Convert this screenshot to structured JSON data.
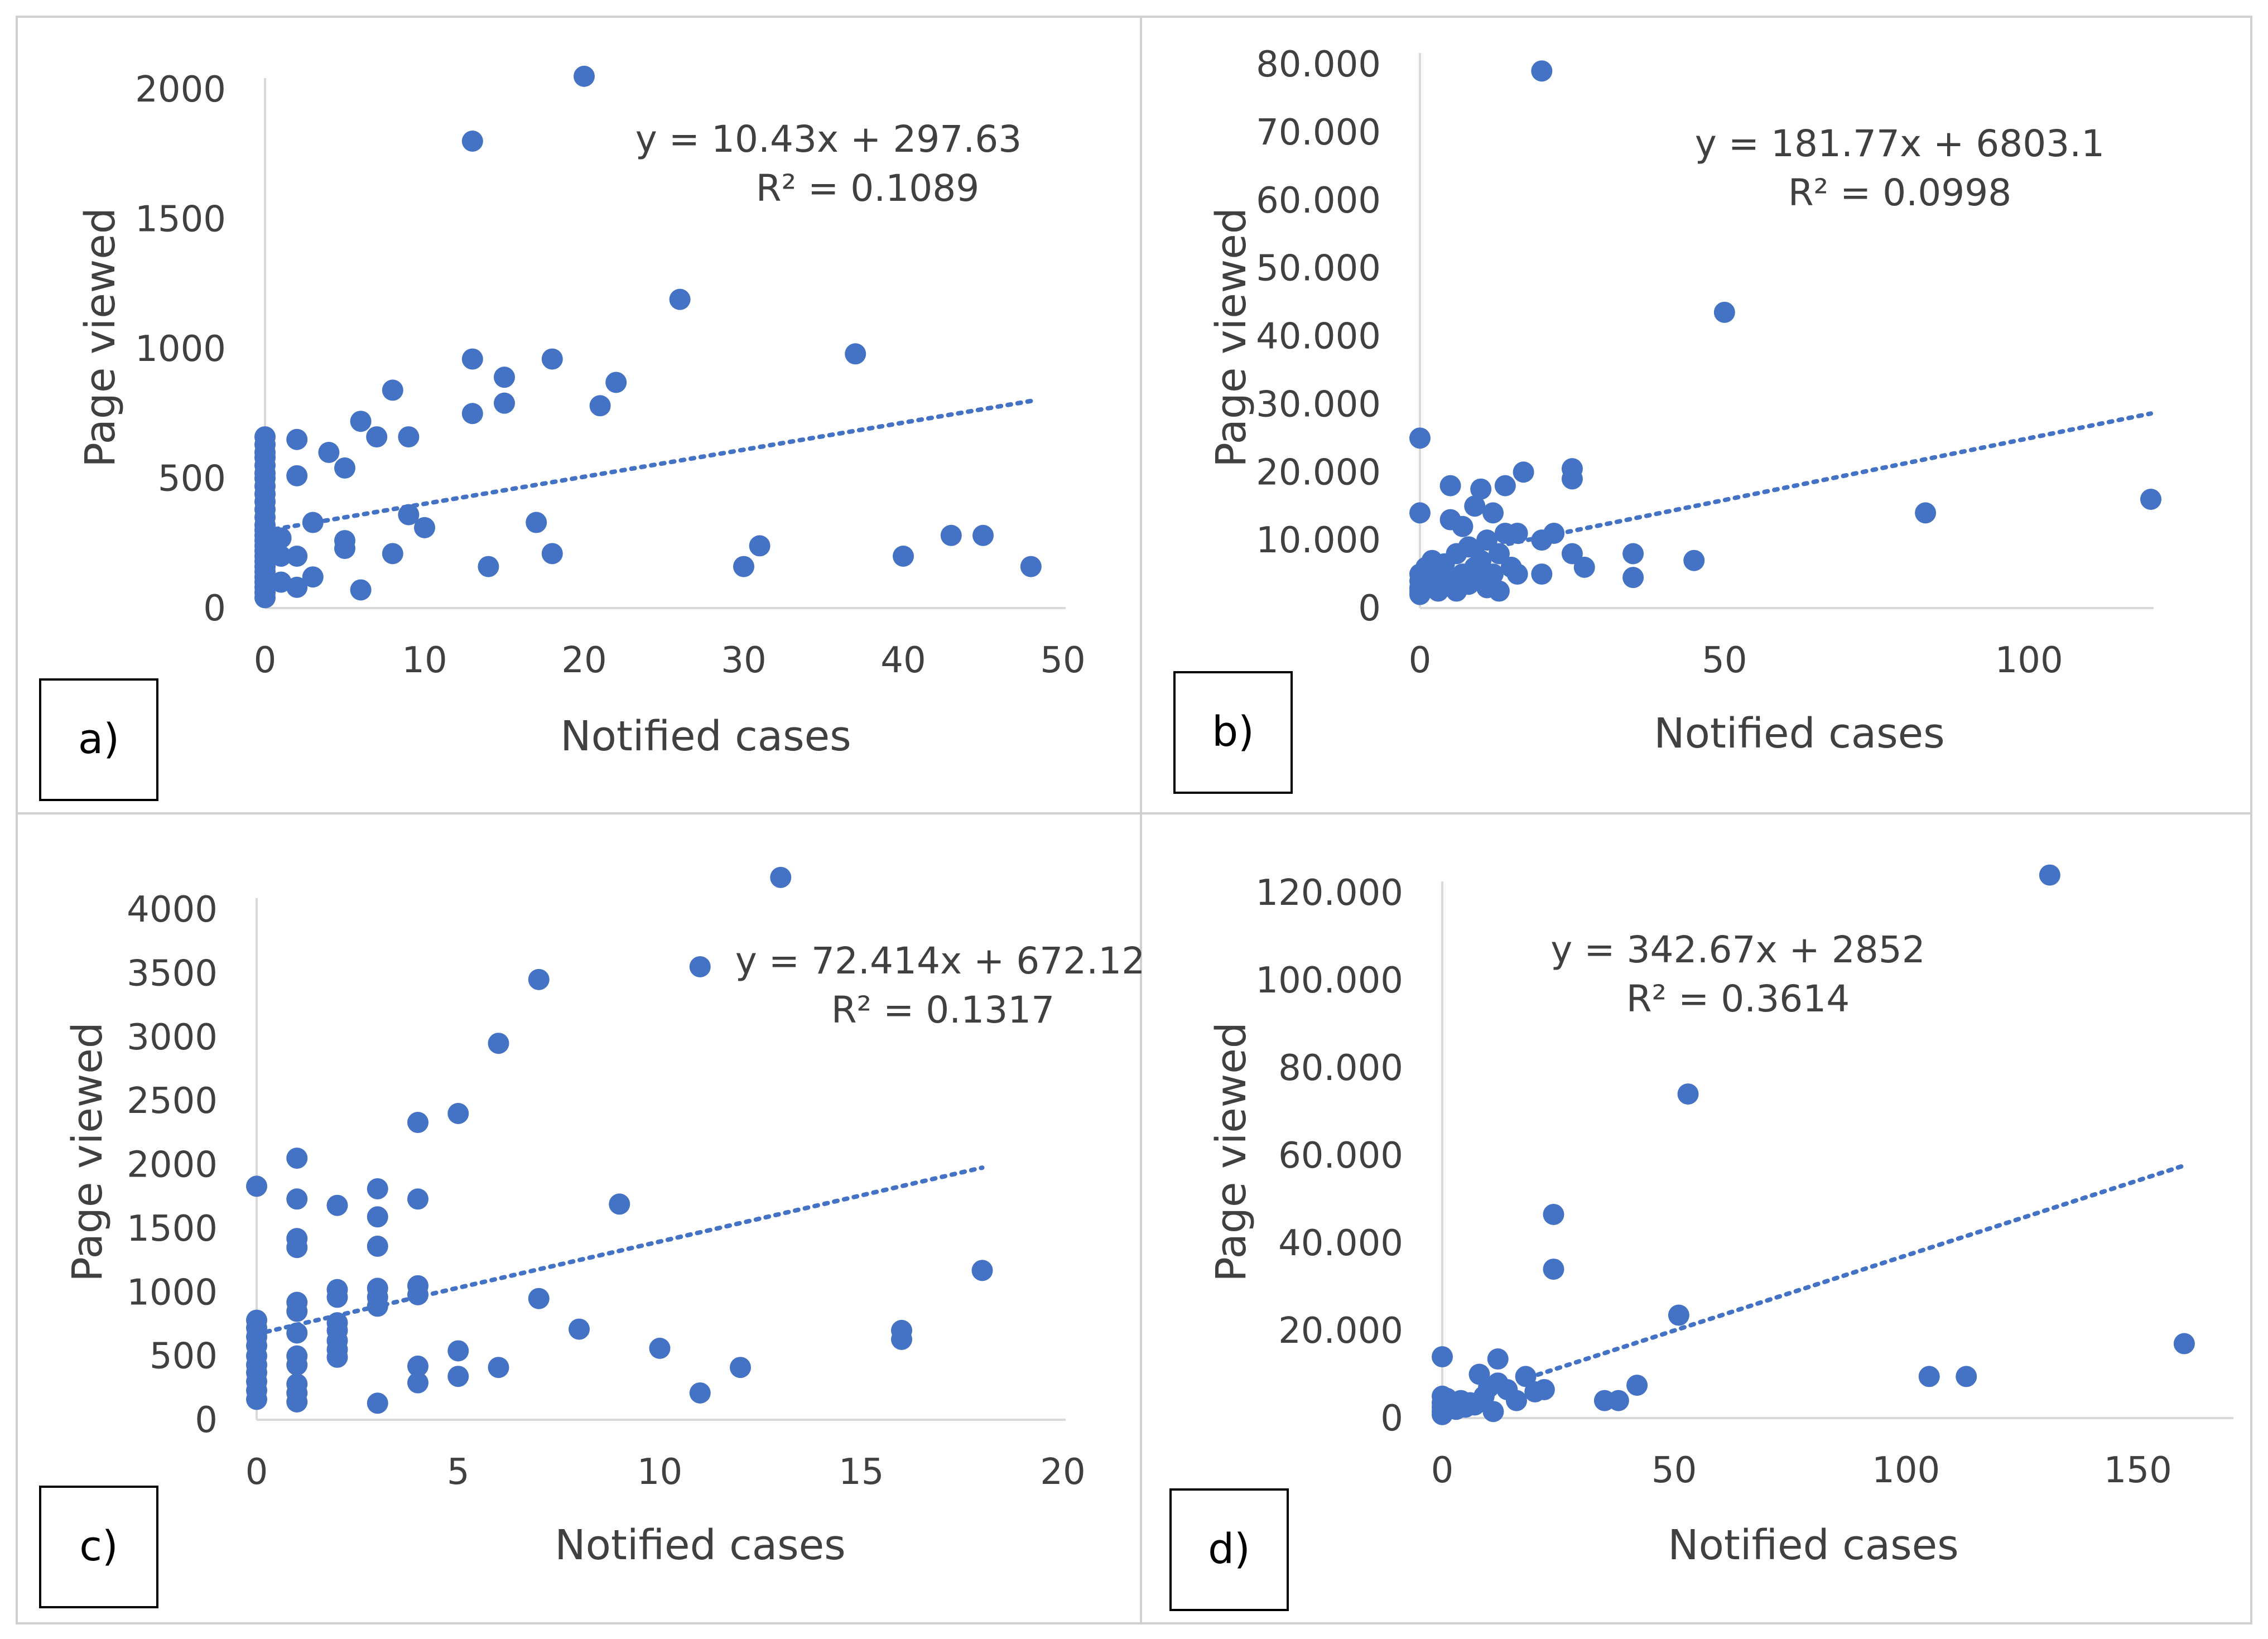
{
  "colors": {
    "marker": "#4472C4",
    "axis_text": "#404040",
    "axis_line": "#d9d9d9",
    "panel_border": "#d0d0d0"
  },
  "chart_data": [
    {
      "type": "scatter",
      "panel_label": "a)",
      "xlabel": "Notified cases",
      "ylabel": "Page viewed",
      "xlim": [
        0,
        50
      ],
      "ylim": [
        0,
        2000
      ],
      "x_ticks": [
        0,
        10,
        20,
        30,
        40,
        50
      ],
      "y_ticks": [
        0,
        500,
        1000,
        1500,
        2000
      ],
      "x_tick_labels": [
        "0",
        "10",
        "20",
        "30",
        "40",
        "50"
      ],
      "y_tick_labels": [
        "0",
        "500",
        "1000",
        "1500",
        "2000"
      ],
      "trendline": {
        "type": "linear",
        "slope": 10.43,
        "intercept": 297.63,
        "x_range": [
          0,
          48
        ],
        "style": "dotted"
      },
      "equation": "y = 10.43x + 297.63",
      "r2_label": "R² = 0.1089",
      "points": [
        [
          0,
          660
        ],
        [
          0,
          630
        ],
        [
          0,
          600
        ],
        [
          0,
          580
        ],
        [
          0,
          550
        ],
        [
          0,
          520
        ],
        [
          0,
          500
        ],
        [
          0,
          470
        ],
        [
          0,
          440
        ],
        [
          0,
          410
        ],
        [
          0,
          380
        ],
        [
          0,
          350
        ],
        [
          0,
          320
        ],
        [
          0,
          300
        ],
        [
          0,
          280
        ],
        [
          0,
          260
        ],
        [
          0,
          240
        ],
        [
          0,
          220
        ],
        [
          0,
          200
        ],
        [
          0,
          180
        ],
        [
          0,
          160
        ],
        [
          0,
          140
        ],
        [
          0,
          120
        ],
        [
          0,
          100
        ],
        [
          0,
          80
        ],
        [
          0,
          60
        ],
        [
          0,
          40
        ],
        [
          1,
          270
        ],
        [
          1,
          200
        ],
        [
          1,
          100
        ],
        [
          2,
          650
        ],
        [
          2,
          510
        ],
        [
          2,
          200
        ],
        [
          2,
          80
        ],
        [
          3,
          330
        ],
        [
          3,
          120
        ],
        [
          4,
          600
        ],
        [
          5,
          540
        ],
        [
          5,
          260
        ],
        [
          5,
          230
        ],
        [
          6,
          720
        ],
        [
          6,
          70
        ],
        [
          7,
          660
        ],
        [
          8,
          840
        ],
        [
          8,
          210
        ],
        [
          9,
          660
        ],
        [
          9,
          360
        ],
        [
          10,
          310
        ],
        [
          13,
          1800
        ],
        [
          13,
          960
        ],
        [
          13,
          750
        ],
        [
          14,
          160
        ],
        [
          15,
          890
        ],
        [
          15,
          790
        ],
        [
          17,
          330
        ],
        [
          18,
          960
        ],
        [
          18,
          210
        ],
        [
          20,
          2050
        ],
        [
          21,
          780
        ],
        [
          22,
          870
        ],
        [
          26,
          1190
        ],
        [
          30,
          160
        ],
        [
          31,
          240
        ],
        [
          37,
          980
        ],
        [
          40,
          200
        ],
        [
          43,
          280
        ],
        [
          45,
          280
        ],
        [
          48,
          160
        ]
      ]
    },
    {
      "type": "scatter",
      "panel_label": "b)",
      "xlabel": "Notified cases",
      "ylabel": "Page viewed",
      "xlim": [
        0,
        120
      ],
      "ylim": [
        0,
        80000
      ],
      "x_ticks": [
        0,
        50,
        100
      ],
      "y_ticks": [
        0,
        10000,
        20000,
        30000,
        40000,
        50000,
        60000,
        70000,
        80000
      ],
      "x_tick_labels": [
        "0",
        "50",
        "100"
      ],
      "y_tick_labels": [
        "0",
        "10.000",
        "20.000",
        "30.000",
        "40.000",
        "50.000",
        "60.000",
        "70.000",
        "80.000"
      ],
      "trendline": {
        "type": "linear",
        "slope": 181.77,
        "intercept": 6803.1,
        "x_range": [
          0,
          120
        ],
        "style": "dotted"
      },
      "equation": "y = 181.77x + 6803.1",
      "r2_label": "R² = 0.0998",
      "points": [
        [
          0,
          25000
        ],
        [
          0,
          14000
        ],
        [
          0,
          5000
        ],
        [
          0,
          4000
        ],
        [
          0,
          3000
        ],
        [
          0,
          2500
        ],
        [
          0,
          2000
        ],
        [
          1,
          6000
        ],
        [
          1,
          4500
        ],
        [
          2,
          7000
        ],
        [
          2,
          3000
        ],
        [
          3,
          5000
        ],
        [
          3,
          2500
        ],
        [
          4,
          6500
        ],
        [
          4,
          3500
        ],
        [
          5,
          18000
        ],
        [
          5,
          13000
        ],
        [
          5,
          4000
        ],
        [
          6,
          8000
        ],
        [
          6,
          2500
        ],
        [
          7,
          12000
        ],
        [
          7,
          5000
        ],
        [
          8,
          9000
        ],
        [
          8,
          3500
        ],
        [
          9,
          15000
        ],
        [
          9,
          6000
        ],
        [
          10,
          17500
        ],
        [
          10,
          7000
        ],
        [
          10,
          4000
        ],
        [
          11,
          10000
        ],
        [
          11,
          3000
        ],
        [
          12,
          14000
        ],
        [
          12,
          5000
        ],
        [
          13,
          8000
        ],
        [
          13,
          2500
        ],
        [
          14,
          18000
        ],
        [
          14,
          11000
        ],
        [
          15,
          6000
        ],
        [
          16,
          11000
        ],
        [
          16,
          5000
        ],
        [
          17,
          20000
        ],
        [
          20,
          79000
        ],
        [
          20,
          10000
        ],
        [
          20,
          5000
        ],
        [
          22,
          11000
        ],
        [
          25,
          20500
        ],
        [
          25,
          19000
        ],
        [
          25,
          8000
        ],
        [
          27,
          6000
        ],
        [
          35,
          4500
        ],
        [
          35,
          8000
        ],
        [
          45,
          7000
        ],
        [
          50,
          43500
        ],
        [
          83,
          14000
        ],
        [
          120,
          16000
        ]
      ]
    },
    {
      "type": "scatter",
      "panel_label": "c)",
      "xlabel": "Notified cases",
      "ylabel": "Page viewed",
      "xlim": [
        0,
        20
      ],
      "ylim": [
        0,
        4000
      ],
      "x_ticks": [
        0,
        5,
        10,
        15,
        20
      ],
      "y_ticks": [
        0,
        500,
        1000,
        1500,
        2000,
        2500,
        3000,
        3500,
        4000
      ],
      "x_tick_labels": [
        "0",
        "5",
        "10",
        "15",
        "20"
      ],
      "y_tick_labels": [
        "0",
        "500",
        "1000",
        "1500",
        "2000",
        "2500",
        "3000",
        "3500",
        "4000"
      ],
      "trendline": {
        "type": "linear",
        "slope": 72.414,
        "intercept": 672.12,
        "x_range": [
          0,
          18
        ],
        "style": "dotted"
      },
      "equation": "y = 72.414x + 672.12",
      "r2_label": "R² = 0.1317",
      "points": [
        [
          0,
          1830
        ],
        [
          0,
          780
        ],
        [
          0,
          720
        ],
        [
          0,
          650
        ],
        [
          0,
          580
        ],
        [
          0,
          500
        ],
        [
          0,
          430
        ],
        [
          0,
          370
        ],
        [
          0,
          300
        ],
        [
          0,
          230
        ],
        [
          0,
          160
        ],
        [
          1,
          2050
        ],
        [
          1,
          1730
        ],
        [
          1,
          1420
        ],
        [
          1,
          1350
        ],
        [
          1,
          920
        ],
        [
          1,
          850
        ],
        [
          1,
          680
        ],
        [
          1,
          500
        ],
        [
          1,
          430
        ],
        [
          1,
          280
        ],
        [
          1,
          210
        ],
        [
          1,
          140
        ],
        [
          2,
          1680
        ],
        [
          2,
          1020
        ],
        [
          2,
          960
        ],
        [
          2,
          760
        ],
        [
          2,
          700
        ],
        [
          2,
          620
        ],
        [
          2,
          550
        ],
        [
          2,
          490
        ],
        [
          3,
          1810
        ],
        [
          3,
          1590
        ],
        [
          3,
          1360
        ],
        [
          3,
          1030
        ],
        [
          3,
          960
        ],
        [
          3,
          890
        ],
        [
          3,
          130
        ],
        [
          4,
          2330
        ],
        [
          4,
          1730
        ],
        [
          4,
          1050
        ],
        [
          4,
          980
        ],
        [
          4,
          420
        ],
        [
          4,
          290
        ],
        [
          5,
          2400
        ],
        [
          5,
          540
        ],
        [
          5,
          340
        ],
        [
          6,
          2950
        ],
        [
          6,
          410
        ],
        [
          7,
          3450
        ],
        [
          7,
          950
        ],
        [
          8,
          710
        ],
        [
          9,
          1690
        ],
        [
          10,
          560
        ],
        [
          11,
          3550
        ],
        [
          11,
          210
        ],
        [
          12,
          410
        ],
        [
          13,
          4250
        ],
        [
          16,
          700
        ],
        [
          16,
          630
        ],
        [
          18,
          1170
        ]
      ]
    },
    {
      "type": "scatter",
      "panel_label": "d)",
      "xlabel": "Notified cases",
      "ylabel": "Page viewed",
      "xlim": [
        0,
        170
      ],
      "ylim": [
        0,
        120000
      ],
      "x_ticks": [
        0,
        50,
        100,
        150
      ],
      "y_ticks": [
        0,
        20000,
        40000,
        60000,
        80000,
        100000,
        120000
      ],
      "x_tick_labels": [
        "0",
        "50",
        "100",
        "150"
      ],
      "y_tick_labels": [
        "0",
        "20.000",
        "40.000",
        "60.000",
        "80.000",
        "100.000",
        "120.000"
      ],
      "trendline": {
        "type": "linear",
        "slope": 342.67,
        "intercept": 2852,
        "x_range": [
          0,
          160
        ],
        "style": "dotted"
      },
      "equation": "y = 342.67x + 2852",
      "r2_label": "R² = 0.3614",
      "points": [
        [
          0,
          14000
        ],
        [
          0,
          5000
        ],
        [
          0,
          3500
        ],
        [
          0,
          2500
        ],
        [
          0,
          1500
        ],
        [
          0,
          800
        ],
        [
          1,
          4500
        ],
        [
          2,
          3000
        ],
        [
          3,
          2000
        ],
        [
          4,
          4000
        ],
        [
          5,
          2500
        ],
        [
          6,
          3500
        ],
        [
          7,
          3000
        ],
        [
          8,
          10000
        ],
        [
          9,
          5000
        ],
        [
          10,
          7000
        ],
        [
          11,
          1500
        ],
        [
          12,
          13500
        ],
        [
          12,
          8000
        ],
        [
          14,
          6500
        ],
        [
          16,
          4000
        ],
        [
          18,
          9500
        ],
        [
          20,
          6000
        ],
        [
          22,
          6500
        ],
        [
          24,
          46500
        ],
        [
          24,
          34000
        ],
        [
          35,
          4000
        ],
        [
          38,
          4000
        ],
        [
          42,
          7500
        ],
        [
          51,
          23500
        ],
        [
          53,
          74000
        ],
        [
          105,
          9500
        ],
        [
          113,
          9500
        ],
        [
          131,
          124000
        ],
        [
          160,
          17000
        ]
      ]
    }
  ]
}
